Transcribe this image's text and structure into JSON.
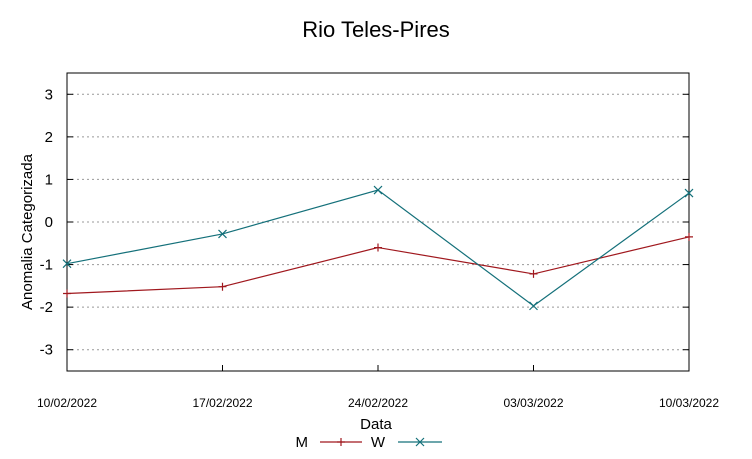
{
  "chart_data": {
    "type": "line",
    "title": "Rio Teles-Pires",
    "xlabel": "Data",
    "ylabel": "Anomalia Categorizada",
    "categories": [
      "10/02/2022",
      "17/02/2022",
      "24/02/2022",
      "03/03/2022",
      "10/03/2022"
    ],
    "ylim": [
      -3.5,
      3.5
    ],
    "yticks": [
      "-3",
      "-2",
      "-1",
      "0",
      "1",
      "2",
      "3"
    ],
    "grid": "horizontal dotted",
    "legend_position": "bottom-center",
    "series": [
      {
        "name": "M",
        "color": "#a0181e",
        "marker": "plus",
        "values": [
          -1.68,
          -1.52,
          -0.6,
          -1.22,
          -0.35
        ]
      },
      {
        "name": "W",
        "color": "#14707a",
        "marker": "x",
        "values": [
          -0.98,
          -0.28,
          0.75,
          -1.97,
          0.68
        ]
      }
    ]
  }
}
